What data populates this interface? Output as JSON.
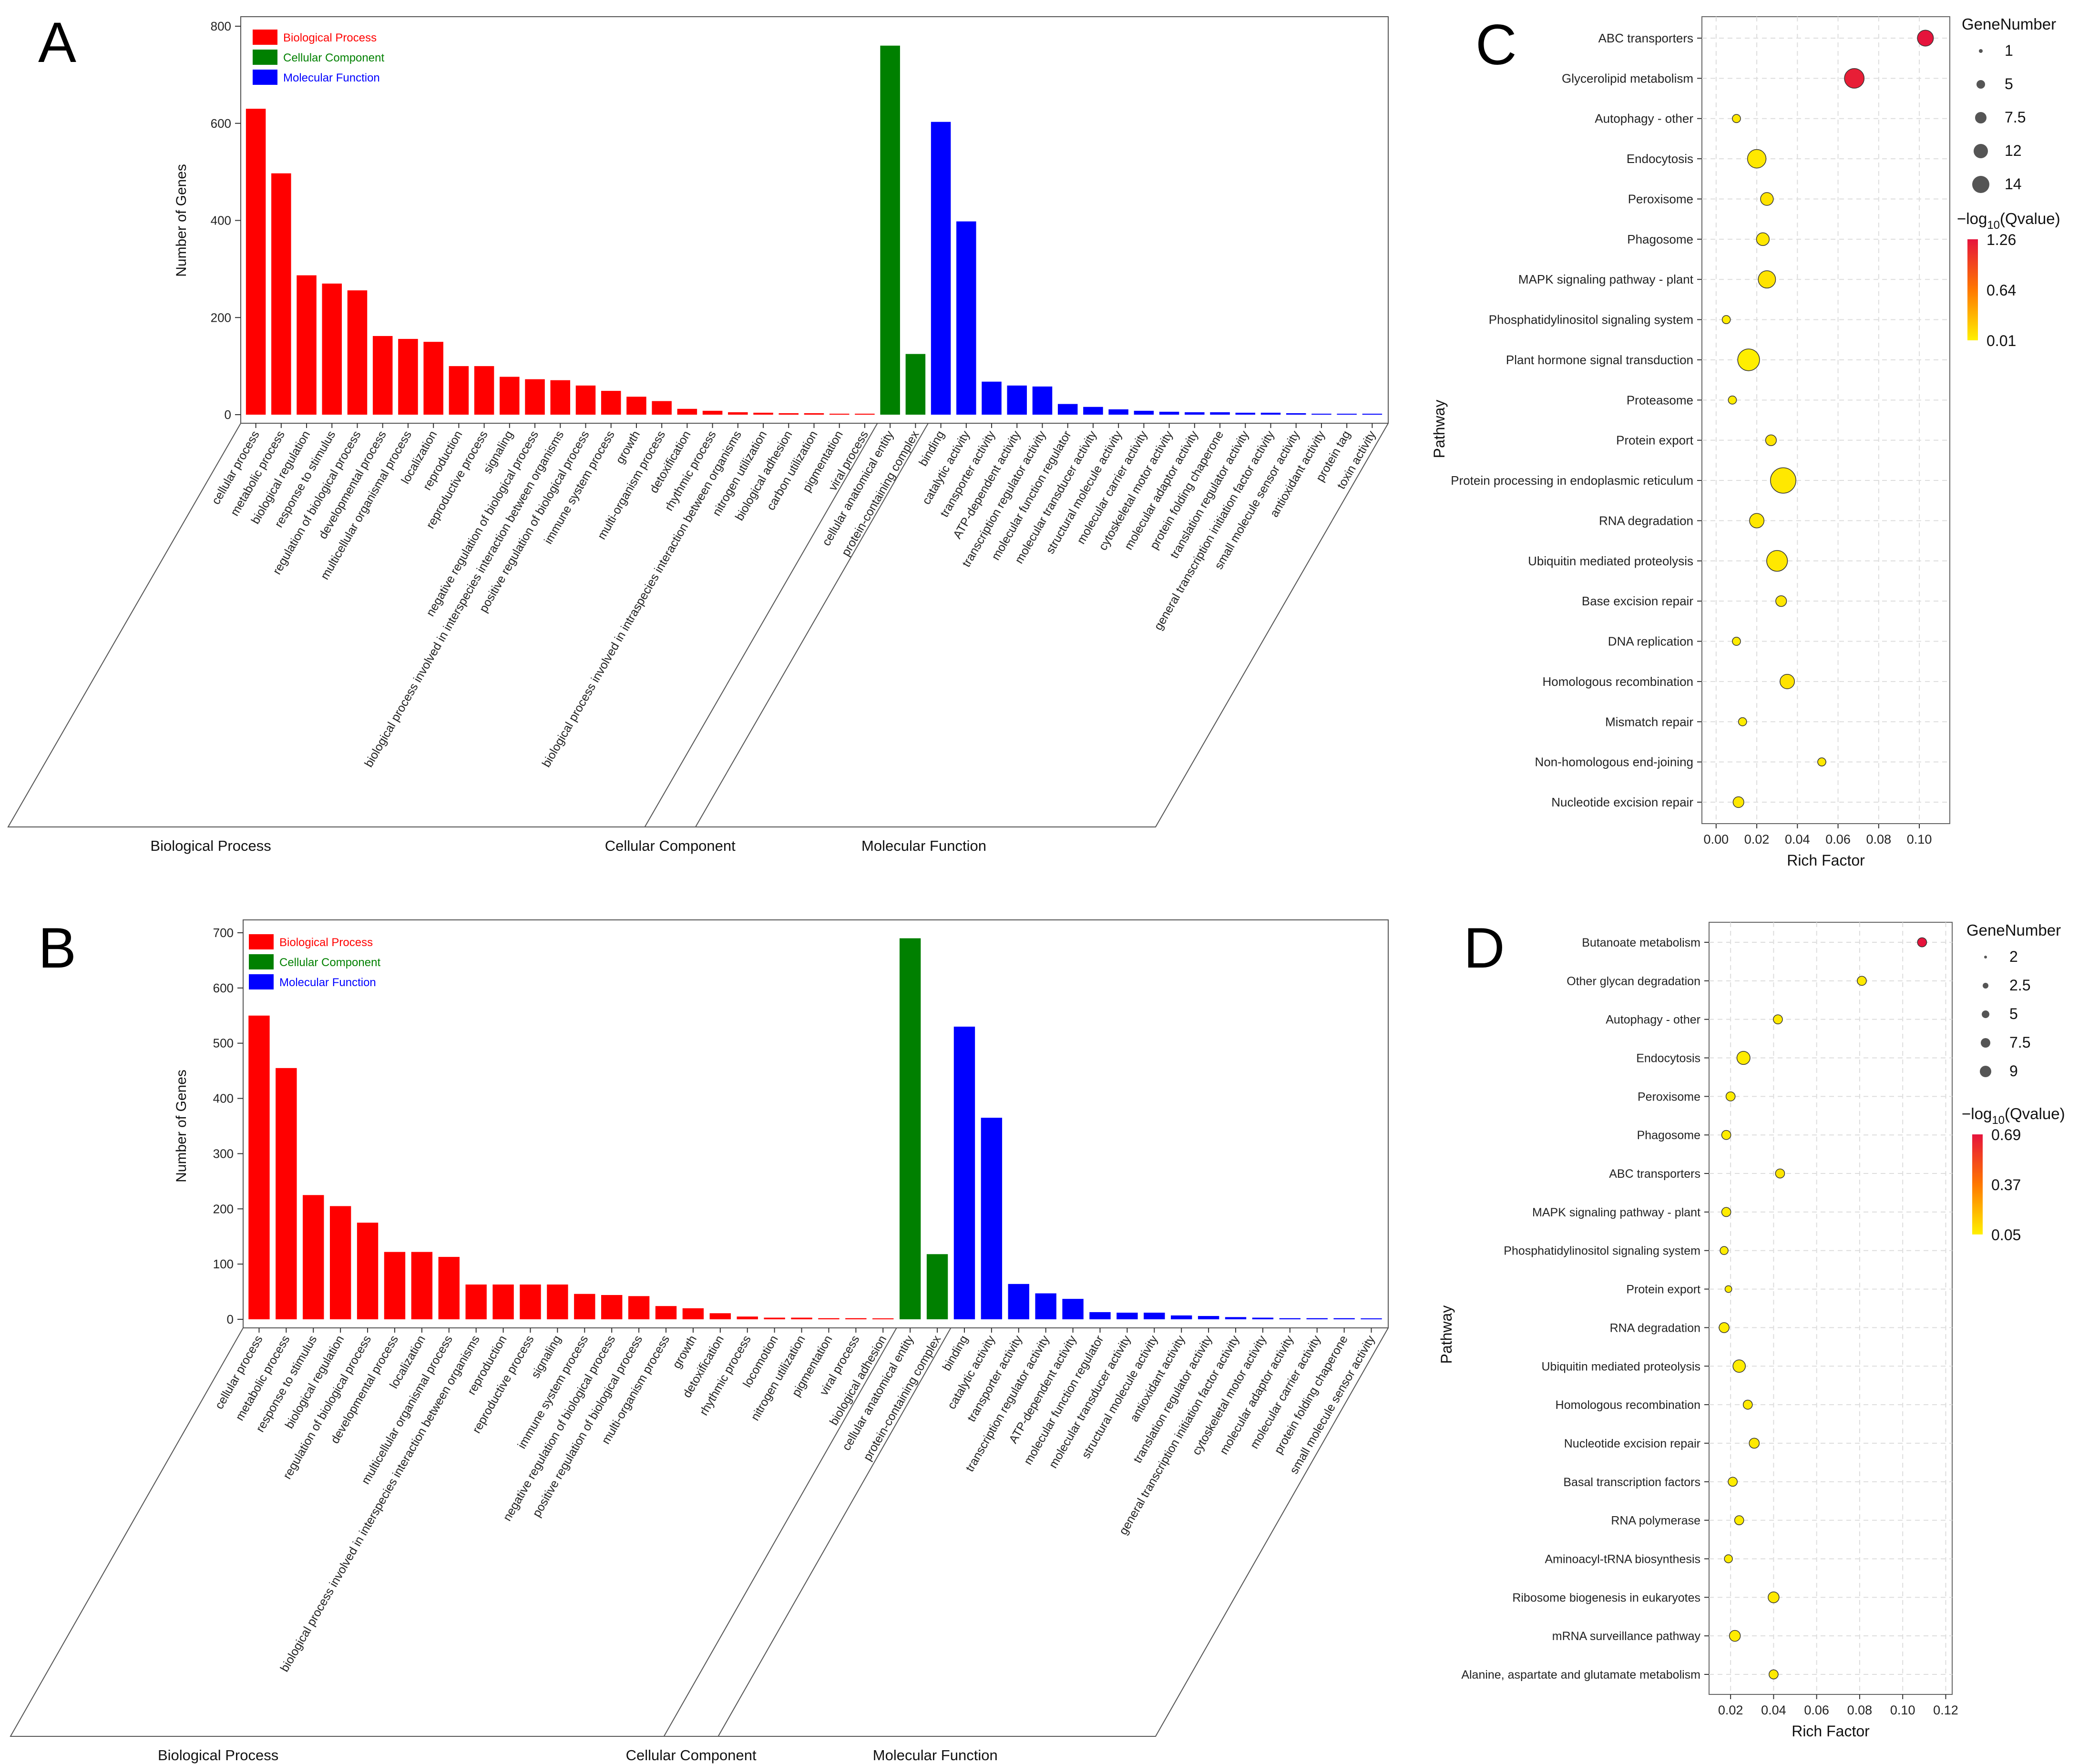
{
  "chart_data": [
    {
      "panel": "A",
      "type": "bar",
      "ylabel": "Number of Genes",
      "ylim": [
        0,
        800
      ],
      "yticks": [
        0,
        200,
        400,
        600,
        800
      ],
      "legend": [
        "Biological Process",
        "Cellular Component",
        "Molecular Function"
      ],
      "legend_position": "top-left",
      "groups": [
        "Biological Process",
        "Cellular Component",
        "Molecular Function"
      ],
      "colors": {
        "Biological Process": "#ff0000",
        "Cellular Component": "#008000",
        "Molecular Function": "#0000ff"
      },
      "bars": [
        {
          "label": "cellular process",
          "group": 0,
          "value": 630
        },
        {
          "label": "metabolic process",
          "group": 0,
          "value": 497
        },
        {
          "label": "biological regulation",
          "group": 0,
          "value": 287
        },
        {
          "label": "response to stimulus",
          "group": 0,
          "value": 270
        },
        {
          "label": "regulation of biological process",
          "group": 0,
          "value": 256
        },
        {
          "label": "developmental process",
          "group": 0,
          "value": 162
        },
        {
          "label": "multicellular organismal process",
          "group": 0,
          "value": 156
        },
        {
          "label": "localization",
          "group": 0,
          "value": 150
        },
        {
          "label": "reproduction",
          "group": 0,
          "value": 100
        },
        {
          "label": "reproductive process",
          "group": 0,
          "value": 100
        },
        {
          "label": "signaling",
          "group": 0,
          "value": 78
        },
        {
          "label": "negative regulation of biological process",
          "group": 0,
          "value": 73
        },
        {
          "label": "biological process involved in interspecies interaction between organisms",
          "group": 0,
          "value": 71
        },
        {
          "label": "positive regulation of biological process",
          "group": 0,
          "value": 60
        },
        {
          "label": "immune system process",
          "group": 0,
          "value": 49
        },
        {
          "label": "growth",
          "group": 0,
          "value": 37
        },
        {
          "label": "multi-organism process",
          "group": 0,
          "value": 28
        },
        {
          "label": "detoxification",
          "group": 0,
          "value": 12
        },
        {
          "label": "rhythmic process",
          "group": 0,
          "value": 8
        },
        {
          "label": "biological process involved in intraspecies interaction between organisms",
          "group": 0,
          "value": 5
        },
        {
          "label": "nitrogen utilization",
          "group": 0,
          "value": 4
        },
        {
          "label": "biological adhesion",
          "group": 0,
          "value": 3
        },
        {
          "label": "carbon utilization",
          "group": 0,
          "value": 3
        },
        {
          "label": "pigmentation",
          "group": 0,
          "value": 2
        },
        {
          "label": "viral process",
          "group": 0,
          "value": 2
        },
        {
          "label": "cellular anatomical entity",
          "group": 1,
          "value": 760
        },
        {
          "label": "protein-containing complex",
          "group": 1,
          "value": 125
        },
        {
          "label": "binding",
          "group": 2,
          "value": 603
        },
        {
          "label": "catalytic activity",
          "group": 2,
          "value": 398
        },
        {
          "label": "transporter activity",
          "group": 2,
          "value": 68
        },
        {
          "label": "ATP-dependent activity",
          "group": 2,
          "value": 60
        },
        {
          "label": "transcription regulator activity",
          "group": 2,
          "value": 58
        },
        {
          "label": "molecular function regulator",
          "group": 2,
          "value": 22
        },
        {
          "label": "molecular transducer activity",
          "group": 2,
          "value": 16
        },
        {
          "label": "structural molecule activity",
          "group": 2,
          "value": 11
        },
        {
          "label": "molecular carrier activity",
          "group": 2,
          "value": 8
        },
        {
          "label": "cytoskeletal motor activity",
          "group": 2,
          "value": 6
        },
        {
          "label": "molecular adaptor activity",
          "group": 2,
          "value": 5
        },
        {
          "label": "protein folding chaperone",
          "group": 2,
          "value": 5
        },
        {
          "label": "translation regulator activity",
          "group": 2,
          "value": 4
        },
        {
          "label": "general transcription initiation factor activity",
          "group": 2,
          "value": 4
        },
        {
          "label": "small molecule sensor activity",
          "group": 2,
          "value": 3
        },
        {
          "label": "antioxidant activity",
          "group": 2,
          "value": 2
        },
        {
          "label": "protein tag",
          "group": 2,
          "value": 1
        },
        {
          "label": "toxin activity",
          "group": 2,
          "value": 1
        }
      ]
    },
    {
      "panel": "B",
      "type": "bar",
      "ylabel": "Number of Genes",
      "ylim": [
        0,
        700
      ],
      "yticks": [
        0,
        100,
        200,
        300,
        400,
        500,
        600,
        700
      ],
      "legend": [
        "Biological Process",
        "Cellular Component",
        "Molecular Function"
      ],
      "legend_position": "top-left",
      "groups": [
        "Biological Process",
        "Cellular Component",
        "Molecular Function"
      ],
      "colors": {
        "Biological Process": "#ff0000",
        "Cellular Component": "#008000",
        "Molecular Function": "#0000ff"
      },
      "bars": [
        {
          "label": "cellular process",
          "group": 0,
          "value": 550
        },
        {
          "label": "metabolic process",
          "group": 0,
          "value": 455
        },
        {
          "label": "response to stimulus",
          "group": 0,
          "value": 225
        },
        {
          "label": "biological regulation",
          "group": 0,
          "value": 205
        },
        {
          "label": "regulation of biological process",
          "group": 0,
          "value": 175
        },
        {
          "label": "developmental process",
          "group": 0,
          "value": 122
        },
        {
          "label": "localization",
          "group": 0,
          "value": 122
        },
        {
          "label": "multicellular organismal process",
          "group": 0,
          "value": 113
        },
        {
          "label": "biological process involved in interspecies interaction between organisms",
          "group": 0,
          "value": 63
        },
        {
          "label": "reproduction",
          "group": 0,
          "value": 63
        },
        {
          "label": "reproductive process",
          "group": 0,
          "value": 63
        },
        {
          "label": "signaling",
          "group": 0,
          "value": 63
        },
        {
          "label": "immune system process",
          "group": 0,
          "value": 46
        },
        {
          "label": "negative regulation of biological process",
          "group": 0,
          "value": 44
        },
        {
          "label": "positive regulation of biological process",
          "group": 0,
          "value": 42
        },
        {
          "label": "multi-organism process",
          "group": 0,
          "value": 24
        },
        {
          "label": "growth",
          "group": 0,
          "value": 20
        },
        {
          "label": "detoxification",
          "group": 0,
          "value": 11
        },
        {
          "label": "rhythmic process",
          "group": 0,
          "value": 5
        },
        {
          "label": "locomotion",
          "group": 0,
          "value": 3
        },
        {
          "label": "nitrogen utilization",
          "group": 0,
          "value": 3
        },
        {
          "label": "pigmentation",
          "group": 0,
          "value": 2
        },
        {
          "label": "viral process",
          "group": 0,
          "value": 2
        },
        {
          "label": "biological adhesion",
          "group": 0,
          "value": 1
        },
        {
          "label": "cellular anatomical entity",
          "group": 1,
          "value": 690
        },
        {
          "label": "protein-containing complex",
          "group": 1,
          "value": 118
        },
        {
          "label": "binding",
          "group": 2,
          "value": 530
        },
        {
          "label": "catalytic activity",
          "group": 2,
          "value": 365
        },
        {
          "label": "transporter activity",
          "group": 2,
          "value": 64
        },
        {
          "label": "transcription regulator activity",
          "group": 2,
          "value": 47
        },
        {
          "label": "ATP-dependent activity",
          "group": 2,
          "value": 37
        },
        {
          "label": "molecular function regulator",
          "group": 2,
          "value": 13
        },
        {
          "label": "molecular transducer activity",
          "group": 2,
          "value": 12
        },
        {
          "label": "structural molecule activity",
          "group": 2,
          "value": 12
        },
        {
          "label": "antioxidant activity",
          "group": 2,
          "value": 7
        },
        {
          "label": "translation regulator activity",
          "group": 2,
          "value": 6
        },
        {
          "label": "general transcription initiation factor activity",
          "group": 2,
          "value": 4
        },
        {
          "label": "cytoskeletal motor activity",
          "group": 2,
          "value": 3
        },
        {
          "label": "molecular adaptor activity",
          "group": 2,
          "value": 2
        },
        {
          "label": "molecular carrier activity",
          "group": 2,
          "value": 2
        },
        {
          "label": "protein folding chaperone",
          "group": 2,
          "value": 2
        },
        {
          "label": "small molecule sensor activity",
          "group": 2,
          "value": 1
        }
      ]
    },
    {
      "panel": "C",
      "type": "scatter",
      "xlabel": "Rich Factor",
      "ylabel": "Pathway",
      "xlim": [
        -0.007,
        0.115
      ],
      "xticks": [
        0.0,
        0.02,
        0.04,
        0.06,
        0.08,
        0.1
      ],
      "xtick_labels": [
        "0.00",
        "0.02",
        "0.04",
        "0.06",
        "0.08",
        "0.10"
      ],
      "size_legend": {
        "title": "GeneNumber",
        "values": [
          "1",
          "5",
          "7.5",
          "12",
          "14"
        ]
      },
      "color_legend": {
        "title_main": "−log",
        "title_sub": "10",
        "title_tail": "(Qvalue)",
        "values": [
          "1.26",
          "0.64",
          "0.01"
        ],
        "min": 0.01,
        "max": 1.26
      },
      "points": [
        {
          "pathway": "ABC transporters",
          "x": 0.103,
          "n": 5,
          "q": 1.26
        },
        {
          "pathway": "Glycerolipid metabolism",
          "x": 0.068,
          "n": 8,
          "q": 1.2
        },
        {
          "pathway": "Autophagy - other",
          "x": 0.01,
          "n": 1,
          "q": 0.05
        },
        {
          "pathway": "Endocytosis",
          "x": 0.02,
          "n": 7,
          "q": 0.05
        },
        {
          "pathway": "Peroxisome",
          "x": 0.025,
          "n": 3,
          "q": 0.08
        },
        {
          "pathway": "Phagosome",
          "x": 0.023,
          "n": 3,
          "q": 0.05
        },
        {
          "pathway": "MAPK signaling pathway - plant",
          "x": 0.025,
          "n": 6,
          "q": 0.08
        },
        {
          "pathway": "Phosphatidylinositol signaling system",
          "x": 0.005,
          "n": 1,
          "q": 0.03
        },
        {
          "pathway": "Plant hormone signal transduction",
          "x": 0.016,
          "n": 10,
          "q": 0.02
        },
        {
          "pathway": "Proteasome",
          "x": 0.008,
          "n": 1,
          "q": 0.03
        },
        {
          "pathway": "Protein export",
          "x": 0.027,
          "n": 2,
          "q": 0.07
        },
        {
          "pathway": "Protein processing in endoplasmic reticulum",
          "x": 0.033,
          "n": 14,
          "q": 0.05
        },
        {
          "pathway": "RNA degradation",
          "x": 0.02,
          "n": 4,
          "q": 0.05
        },
        {
          "pathway": "Ubiquitin mediated proteolysis",
          "x": 0.03,
          "n": 9,
          "q": 0.05
        },
        {
          "pathway": "Base excision repair",
          "x": 0.032,
          "n": 2,
          "q": 0.06
        },
        {
          "pathway": "DNA replication",
          "x": 0.01,
          "n": 1,
          "q": 0.03
        },
        {
          "pathway": "Homologous recombination",
          "x": 0.035,
          "n": 4,
          "q": 0.08
        },
        {
          "pathway": "Mismatch repair",
          "x": 0.013,
          "n": 1,
          "q": 0.03
        },
        {
          "pathway": "Non-homologous end-joining",
          "x": 0.052,
          "n": 1,
          "q": 0.05
        },
        {
          "pathway": "Nucleotide excision repair",
          "x": 0.011,
          "n": 2,
          "q": 0.05
        }
      ]
    },
    {
      "panel": "D",
      "type": "scatter",
      "xlabel": "Rich Factor",
      "ylabel": "Pathway",
      "xlim": [
        0.01,
        0.123
      ],
      "xticks": [
        0.02,
        0.04,
        0.06,
        0.08,
        0.1,
        0.12
      ],
      "xtick_labels": [
        "0.02",
        "0.04",
        "0.06",
        "0.08",
        "0.10",
        "0.12"
      ],
      "size_legend": {
        "title": "GeneNumber",
        "values": [
          "2",
          "2.5",
          "5",
          "7.5",
          "9"
        ]
      },
      "color_legend": {
        "title_main": "−log",
        "title_sub": "10",
        "title_tail": "(Qvalue)",
        "values": [
          "0.69",
          "0.37",
          "0.05"
        ],
        "min": 0.05,
        "max": 0.69
      },
      "points": [
        {
          "pathway": "Butanoate metabolism",
          "x": 0.109,
          "n": 4,
          "q": 0.69
        },
        {
          "pathway": "Other glycan degradation",
          "x": 0.081,
          "n": 4,
          "q": 0.07
        },
        {
          "pathway": "Autophagy - other",
          "x": 0.042,
          "n": 4,
          "q": 0.07
        },
        {
          "pathway": "Endocytosis",
          "x": 0.026,
          "n": 9,
          "q": 0.06
        },
        {
          "pathway": "Peroxisome",
          "x": 0.02,
          "n": 4,
          "q": 0.06
        },
        {
          "pathway": "Phagosome",
          "x": 0.018,
          "n": 4,
          "q": 0.06
        },
        {
          "pathway": "ABC transporters",
          "x": 0.043,
          "n": 4,
          "q": 0.08
        },
        {
          "pathway": "MAPK signaling pathway - plant",
          "x": 0.018,
          "n": 4,
          "q": 0.06
        },
        {
          "pathway": "Phosphatidylinositol signaling system",
          "x": 0.017,
          "n": 3,
          "q": 0.06
        },
        {
          "pathway": "Protein export",
          "x": 0.019,
          "n": 2,
          "q": 0.06
        },
        {
          "pathway": "RNA degradation",
          "x": 0.017,
          "n": 5,
          "q": 0.06
        },
        {
          "pathway": "Ubiquitin mediated proteolysis",
          "x": 0.024,
          "n": 8,
          "q": 0.06
        },
        {
          "pathway": "Homologous recombination",
          "x": 0.028,
          "n": 4,
          "q": 0.07
        },
        {
          "pathway": "Nucleotide excision repair",
          "x": 0.031,
          "n": 5,
          "q": 0.07
        },
        {
          "pathway": "Basal transcription factors",
          "x": 0.021,
          "n": 4,
          "q": 0.06
        },
        {
          "pathway": "RNA polymerase",
          "x": 0.024,
          "n": 4,
          "q": 0.06
        },
        {
          "pathway": "Aminoacyl-tRNA biosynthesis",
          "x": 0.019,
          "n": 3,
          "q": 0.06
        },
        {
          "pathway": "Ribosome biogenesis in eukaryotes",
          "x": 0.04,
          "n": 6,
          "q": 0.07
        },
        {
          "pathway": "mRNA surveillance pathway",
          "x": 0.022,
          "n": 6,
          "q": 0.06
        },
        {
          "pathway": "Alanine, aspartate and glutamate metabolism",
          "x": 0.04,
          "n": 4,
          "q": 0.07
        }
      ]
    }
  ]
}
